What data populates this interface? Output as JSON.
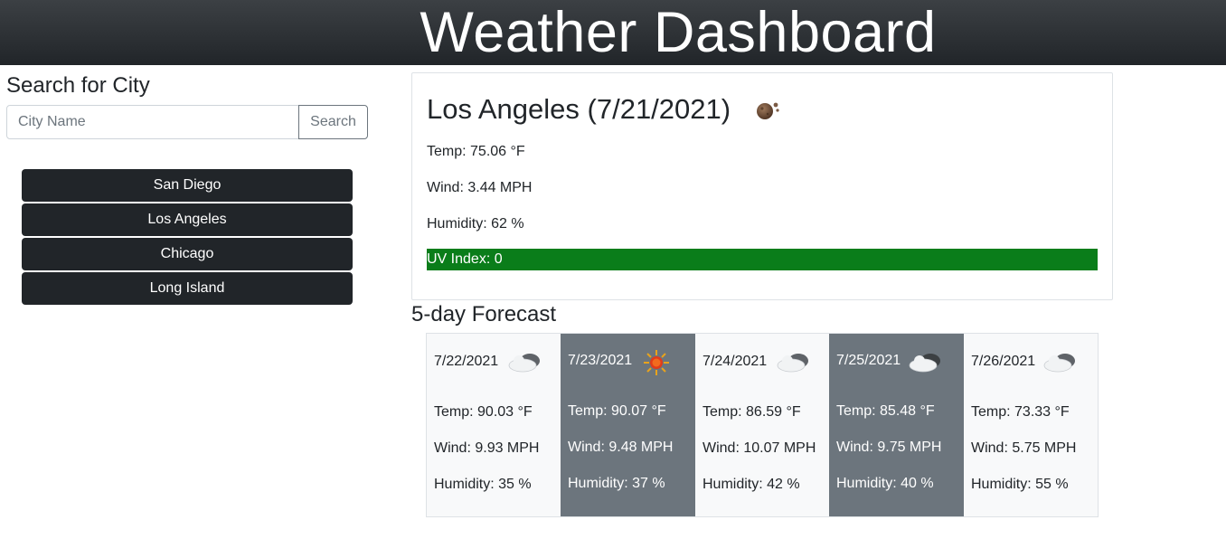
{
  "header": {
    "title": "Weather Dashboard"
  },
  "search": {
    "heading": "Search for City",
    "placeholder": "City Name",
    "button_label": "Search"
  },
  "history": [
    "San Diego",
    "Los Angeles",
    "Chicago",
    "Long Island"
  ],
  "current": {
    "title": "Los Angeles (7/21/2021)",
    "icon": "moon-clouds-icon",
    "temp": "Temp: 75.06 °F",
    "wind": "Wind: 3.44 MPH",
    "humidity": "Humidity: 62 %",
    "uv": "UV Index: 0",
    "uv_color": "#0a7d1a"
  },
  "forecast": {
    "heading": "5-day Forecast",
    "days": [
      {
        "date": "7/22/2021",
        "icon": "cloud-icon",
        "temp": "Temp: 90.03 °F",
        "wind": "Wind: 9.93 MPH",
        "humidity": "Humidity: 35 %"
      },
      {
        "date": "7/23/2021",
        "icon": "sun-icon",
        "temp": "Temp: 90.07 °F",
        "wind": "Wind: 9.48 MPH",
        "humidity": "Humidity: 37 %"
      },
      {
        "date": "7/24/2021",
        "icon": "cloud-icon",
        "temp": "Temp: 86.59 °F",
        "wind": "Wind: 10.07 MPH",
        "humidity": "Humidity: 42 %"
      },
      {
        "date": "7/25/2021",
        "icon": "cloud-icon",
        "temp": "Temp: 85.48 °F",
        "wind": "Wind: 9.75 MPH",
        "humidity": "Humidity: 40 %"
      },
      {
        "date": "7/26/2021",
        "icon": "cloud-icon",
        "temp": "Temp: 73.33 °F",
        "wind": "Wind: 5.75 MPH",
        "humidity": "Humidity: 55 %"
      }
    ]
  },
  "colors": {
    "header_bg": "#212529",
    "history_button_bg": "#212529",
    "forecast_dark_bg": "#6c757d",
    "forecast_light_bg": "#f8f9fa"
  }
}
